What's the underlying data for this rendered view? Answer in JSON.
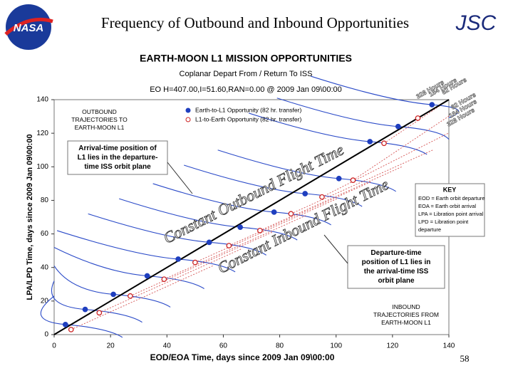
{
  "slide": {
    "title": "Frequency of Outbound and Inbound Opportunities",
    "org": "JSC",
    "logo": "NASA",
    "page": "58"
  },
  "chart_data": {
    "type": "scatter",
    "title": "EARTH-MOON L1 MISSION OPPORTUNITIES",
    "subtitle": "Coplanar Depart From / Return To ISS",
    "orbit_note": "EO H=407.00,I=51.60,RAN=0.00 @ 2009 Jan 09\\00:00",
    "x_label": "EOD/EOA Time, days since 2009 Jan 09\\00:00",
    "y_label": "LPA/LPD Time, days since 2009 Jan 09\\00:00",
    "xlim": [
      0,
      140
    ],
    "ylim": [
      0,
      140
    ],
    "xticks": [
      0,
      20,
      40,
      60,
      80,
      100,
      120,
      140
    ],
    "yticks": [
      0,
      20,
      40,
      60,
      80,
      100,
      120,
      140
    ],
    "series": [
      {
        "name": "Earth-to-L1 Opportunity (82 hr. transfer)",
        "color": "#1f3fbf",
        "marker": "filled",
        "x": [
          4,
          11,
          21,
          33,
          44,
          55,
          66,
          78,
          89,
          101,
          112,
          122,
          134
        ],
        "y": [
          6,
          15,
          24,
          35,
          45,
          55,
          64,
          73,
          84,
          93,
          115,
          124,
          137
        ]
      },
      {
        "name": "L1-to-Earth Opportunity (82 hr. transfer)",
        "color": "#cc2222",
        "marker": "open",
        "x": [
          6,
          16,
          27,
          39,
          50,
          62,
          73,
          84,
          95,
          106,
          117,
          129
        ],
        "y": [
          3,
          13,
          23,
          33,
          43,
          53,
          62,
          72,
          82,
          92,
          114,
          129
        ]
      }
    ],
    "reference_line": {
      "x": [
        0,
        140
      ],
      "y": [
        0,
        140
      ]
    },
    "outbound_label": "Constant Outbound Flight Time",
    "inbound_label": "Constant Inbound Flight Time",
    "outbound_box": [
      "OUTBOUND",
      "TRAJECTORIES TO",
      "EARTH-MOON L1"
    ],
    "arrival_box": [
      "Arrival-time position of",
      "L1 lies in the departure-",
      "time ISS orbit plane"
    ],
    "key": {
      "title": "KEY",
      "lines": [
        "EOD = Earth orbit departure",
        "EOA = Earth orbit arrival",
        "LPA = Libration point arrival",
        "LPD = Libration point",
        "departure"
      ]
    },
    "departure_box": [
      "Departure-time",
      "position of L1 lies in",
      "the arrival-time ISS",
      "orbit plane"
    ],
    "inbound_box": [
      "INBOUND",
      "TRAJECTORIES FROM",
      "EARTH-MOON L1"
    ],
    "hours_outbound": [
      "328 Hours",
      "164 Hours",
      "82 Hours"
    ],
    "hours_inbound": [
      "82 Hours",
      "164 Hours",
      "328 Hours"
    ]
  }
}
